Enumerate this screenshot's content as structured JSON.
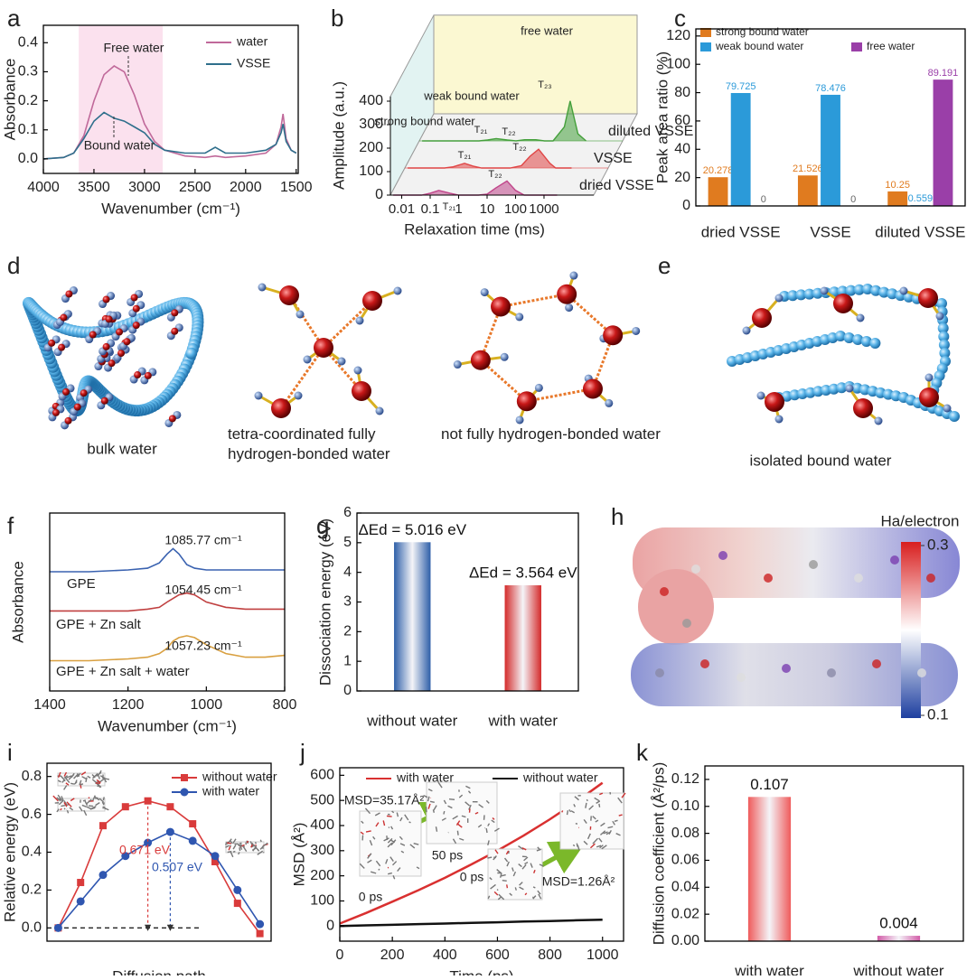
{
  "chart_data": [
    {
      "type": "line",
      "panel": "a",
      "xlabel": "Wavenumber (cm⁻¹)",
      "ylabel": "Absorbance",
      "xlim": [
        4000,
        1480
      ],
      "ylim": [
        -0.05,
        0.46
      ],
      "xticks": [
        4000,
        3500,
        3000,
        2500,
        2000,
        1500
      ],
      "yticks": [
        {
          "value": 0,
          "label": "0.0"
        },
        0.1,
        0.2,
        0.3,
        0.4
      ],
      "shaded_range": [
        3650,
        2820
      ],
      "shade_color": "#fbe1ee",
      "legend": "upper right",
      "annotations": [
        "Free water",
        "Bound water"
      ],
      "x": [
        4000,
        3800,
        3700,
        3600,
        3500,
        3400,
        3300,
        3200,
        3100,
        3000,
        2900,
        2800,
        2600,
        2400,
        2300,
        2200,
        2000,
        1800,
        1700,
        1650,
        1630,
        1600,
        1550,
        1500
      ],
      "series": [
        {
          "name": "water",
          "color": "#c0699a",
          "values": [
            0,
            0.005,
            0.02,
            0.08,
            0.2,
            0.29,
            0.32,
            0.3,
            0.22,
            0.12,
            0.06,
            0.03,
            0.01,
            0.005,
            0.01,
            0.005,
            0.01,
            0.02,
            0.05,
            0.11,
            0.155,
            0.07,
            0.03,
            0.02
          ]
        },
        {
          "name": "VSSE",
          "color": "#2f6f8c",
          "values": [
            0,
            0.005,
            0.02,
            0.07,
            0.13,
            0.16,
            0.14,
            0.13,
            0.11,
            0.09,
            0.05,
            0.03,
            0.02,
            0.02,
            0.04,
            0.02,
            0.02,
            0.03,
            0.05,
            0.09,
            0.12,
            0.06,
            0.03,
            0.02
          ]
        }
      ]
    },
    {
      "type": "waterfall",
      "panel": "b",
      "xlabel": "Relaxation time (ms)",
      "ylabel": "Amplitude (a.u.)",
      "xlog": true,
      "xlim": [
        0.004,
        3000
      ],
      "xticks": [
        0.01,
        0.1,
        1,
        10,
        100,
        1000
      ],
      "ylim": [
        0,
        420
      ],
      "yticks": [
        0,
        100,
        200,
        300,
        400
      ],
      "annotations": [
        "free water",
        "weak bound water",
        "strong bound water",
        "T₂₁",
        "T₂₂",
        "T₂₁",
        "T₂₂",
        "T₂₁",
        "T₂₂",
        "T₂₃"
      ],
      "x": [
        0.005,
        0.01,
        0.05,
        0.1,
        0.2,
        0.5,
        1,
        2,
        5,
        10,
        20,
        50,
        100,
        200,
        500,
        800,
        1500,
        2900
      ],
      "series": [
        {
          "name": "dried VSSE",
          "color": "#c0458a",
          "values": [
            0,
            0,
            0,
            8,
            20,
            8,
            0,
            0,
            0,
            4,
            30,
            60,
            20,
            0,
            0,
            0,
            0,
            0
          ]
        },
        {
          "name": "VSSE",
          "color": "#e04545",
          "values": [
            0,
            0,
            0,
            0,
            5,
            20,
            8,
            0,
            0,
            0,
            0,
            10,
            50,
            80,
            20,
            0,
            0,
            0
          ]
        },
        {
          "name": "diluted VSSE",
          "color": "#45a03c",
          "values": [
            0,
            0,
            0,
            0,
            0,
            0,
            4,
            10,
            4,
            0,
            5,
            5,
            0,
            0,
            60,
            170,
            30,
            0
          ]
        }
      ]
    },
    {
      "type": "bar",
      "panel": "c",
      "ylabel": "Peak area ratio (%)",
      "categories": [
        "dried VSSE",
        "VSSE",
        "diluted VSSE"
      ],
      "ylim": [
        0,
        125
      ],
      "yticks": [
        0,
        20,
        40,
        60,
        80,
        100,
        120
      ],
      "legend": "upper left",
      "data_labels": true,
      "series": [
        {
          "name": "strong bound water",
          "color": "#e07b1f",
          "values": [
            20.278,
            21.526,
            10.25
          ]
        },
        {
          "name": "weak bound water",
          "color": "#2b9ad9",
          "values": [
            79.725,
            78.476,
            0.559
          ]
        },
        {
          "name": "free water",
          "color": "#9a3fa8",
          "values": [
            0,
            0,
            89.191
          ]
        }
      ]
    },
    {
      "type": "line",
      "panel": "f",
      "xlabel": "Wavenumber (cm⁻¹)",
      "ylabel": "Absorbance",
      "xlim": [
        1400,
        800
      ],
      "xticks": [
        1400,
        1200,
        1000,
        800
      ],
      "ylim": [
        0,
        1
      ],
      "legend": "inline",
      "annotations": [
        "1085.77 cm⁻¹",
        "1054.45 cm⁻¹",
        "1057.23 cm⁻¹"
      ],
      "x": [
        1400,
        1300,
        1200,
        1150,
        1120,
        1100,
        1085,
        1070,
        1050,
        1030,
        1000,
        950,
        900,
        850,
        800
      ],
      "series": [
        {
          "name": "GPE",
          "color": "#3a62b0",
          "values": [
            0.67,
            0.67,
            0.68,
            0.69,
            0.72,
            0.77,
            0.8,
            0.77,
            0.71,
            0.69,
            0.68,
            0.68,
            0.68,
            0.68,
            0.68
          ]
        },
        {
          "name": "GPE + Zn salt",
          "color": "#c04040",
          "values": [
            0.45,
            0.45,
            0.45,
            0.46,
            0.47,
            0.5,
            0.52,
            0.54,
            0.55,
            0.54,
            0.5,
            0.47,
            0.46,
            0.46,
            0.46
          ]
        },
        {
          "name": "GPE + Zn salt + water",
          "color": "#d9a040",
          "values": [
            0.17,
            0.17,
            0.18,
            0.19,
            0.21,
            0.24,
            0.28,
            0.3,
            0.31,
            0.3,
            0.26,
            0.21,
            0.19,
            0.19,
            0.2
          ]
        }
      ]
    },
    {
      "type": "bar",
      "panel": "g",
      "ylabel": "Dissociation energy (eV)",
      "categories": [
        "without water",
        "with water"
      ],
      "values": [
        5.016,
        3.564
      ],
      "value_labels": [
        "ΔEd = 5.016 eV",
        "ΔEd = 3.564 eV"
      ],
      "colors": [
        "#2e5fa8",
        "#d42a2a"
      ],
      "gradient": true,
      "ylim": [
        0,
        6
      ],
      "yticks": [
        0,
        1,
        2,
        3,
        4,
        5,
        6
      ]
    },
    {
      "type": "line",
      "panel": "i",
      "xlabel": "Diffusion path",
      "ylabel": "Relative energy (eV)",
      "categories": [
        null,
        null,
        null,
        null,
        null,
        null,
        null,
        null,
        null,
        null
      ],
      "ylim": [
        -0.07,
        0.87
      ],
      "yticks": [
        {
          "value": 0,
          "label": "0.0"
        },
        0.2,
        0.4,
        0.6,
        0.8
      ],
      "legend": "upper right",
      "annotations": [
        "0.671 eV",
        "0.507 eV"
      ],
      "series": [
        {
          "name": "without water",
          "color": "#d93b3b",
          "marker": "square",
          "values": [
            0,
            0.24,
            0.54,
            0.64,
            0.671,
            0.64,
            0.55,
            0.35,
            0.13,
            -0.03
          ]
        },
        {
          "name": "with water",
          "color": "#2f56b0",
          "marker": "circle",
          "values": [
            0,
            0.14,
            0.28,
            0.38,
            0.45,
            0.507,
            0.46,
            0.38,
            0.2,
            0.02
          ]
        }
      ]
    },
    {
      "type": "line",
      "panel": "j",
      "xlabel": "Time (ps)",
      "ylabel": "MSD (Å²)",
      "xlim": [
        0,
        1080
      ],
      "xticks": [
        0,
        200,
        400,
        600,
        800,
        1000
      ],
      "ylim": [
        -60,
        630
      ],
      "yticks": [
        0,
        100,
        200,
        300,
        400,
        500,
        600
      ],
      "legend": "upper",
      "annotations": [
        "MSD=35.17Å²",
        "50 ps",
        "0 ps",
        "0 ps",
        "50 ps",
        "MSD=1.26Å²"
      ],
      "x": [
        0,
        100,
        200,
        300,
        400,
        500,
        600,
        700,
        800,
        900,
        1000
      ],
      "series": [
        {
          "name": "with water",
          "color": "#d93030",
          "values": [
            10,
            52,
            97,
            143,
            192,
            245,
            300,
            360,
            425,
            495,
            570
          ]
        },
        {
          "name": "without water",
          "color": "#111111",
          "values": [
            0,
            3,
            5,
            8,
            10,
            13,
            15,
            18,
            20,
            23,
            25
          ]
        }
      ]
    },
    {
      "type": "bar",
      "panel": "k",
      "ylabel": "Diffusion coefficient (Å²/ps)",
      "categories": [
        "with water",
        "without water"
      ],
      "values": [
        0.107,
        0.004
      ],
      "colors": [
        "#ef5b5b",
        "#d25ca8"
      ],
      "gradient": true,
      "data_labels": true,
      "ylim": [
        0,
        0.13
      ],
      "yticks": [
        {
          "value": 0,
          "label": "0.00"
        },
        0.02,
        0.04,
        0.06,
        0.08,
        {
          "value": 0.1,
          "label": "0.10"
        },
        0.12
      ]
    }
  ],
  "diagrams": {
    "d": {
      "panel": "d",
      "captions": [
        "bulk water",
        "tetra-coordinated fully hydrogen-bonded water",
        "not fully hydrogen-bonded water"
      ]
    },
    "e": {
      "panel": "e",
      "captions": [
        "isolated bound water"
      ]
    },
    "h": {
      "panel": "h",
      "colorbar_title": "Ha/electron",
      "colorbar_ticks": [
        0.3,
        0.1
      ]
    }
  }
}
